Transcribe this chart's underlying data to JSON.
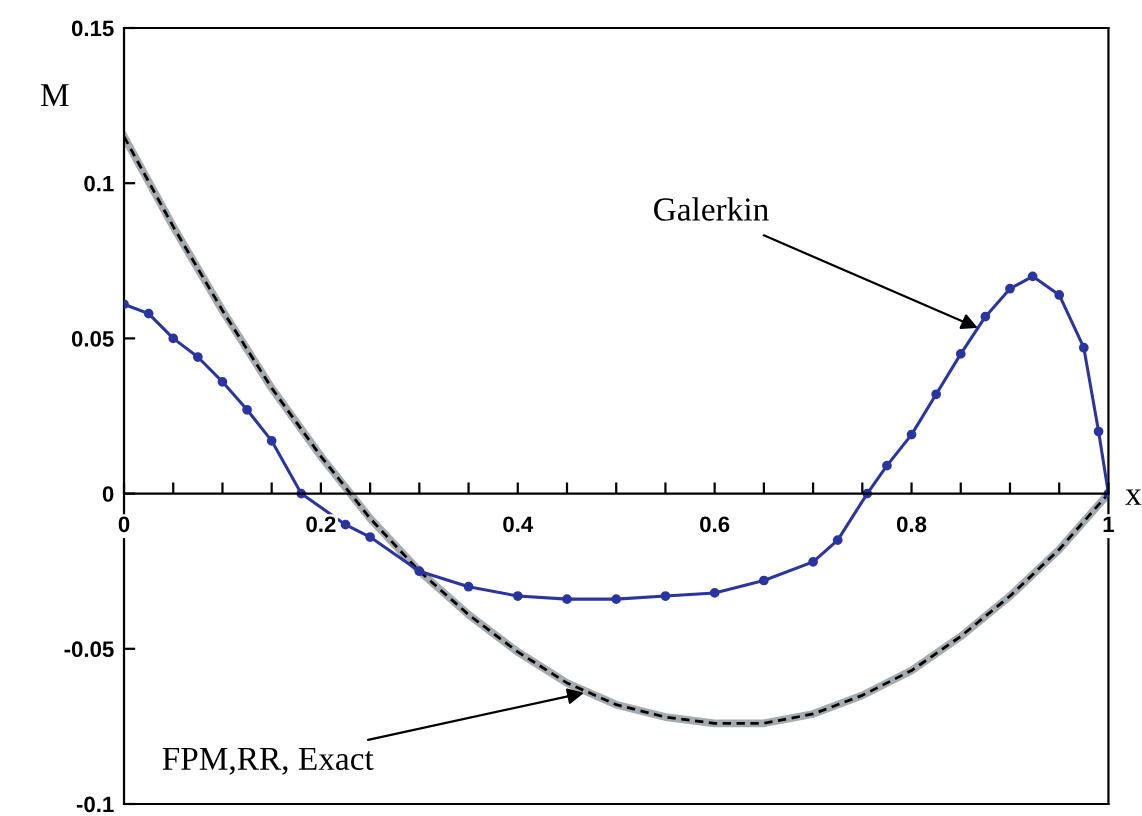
{
  "chart_data": {
    "type": "line",
    "xlabel": "x",
    "ylabel": "M",
    "xlim": [
      0,
      1
    ],
    "ylim": [
      -0.1,
      0.15
    ],
    "xticks": [
      0,
      {
        "value": 0.05,
        "label": null
      },
      {
        "value": 0.1,
        "label": null
      },
      {
        "value": 0.15,
        "label": null
      },
      0.2,
      {
        "value": 0.25,
        "label": null
      },
      {
        "value": 0.3,
        "label": null
      },
      {
        "value": 0.35,
        "label": null
      },
      0.4,
      {
        "value": 0.45,
        "label": null
      },
      {
        "value": 0.5,
        "label": null
      },
      {
        "value": 0.55,
        "label": null
      },
      0.6,
      {
        "value": 0.65,
        "label": null
      },
      {
        "value": 0.7,
        "label": null
      },
      {
        "value": 0.75,
        "label": null
      },
      0.8,
      {
        "value": 0.85,
        "label": null
      },
      {
        "value": 0.9,
        "label": null
      },
      {
        "value": 0.95,
        "label": null
      },
      1
    ],
    "yticks": [
      -0.1,
      -0.05,
      0,
      0.05,
      0.1,
      0.15
    ],
    "grid": false,
    "legend": false,
    "series": [
      {
        "color": "#a6abaf",
        "line_style": "solid",
        "marker": "none",
        "x": [
          0,
          0.05,
          0.1,
          0.15,
          0.2,
          0.25,
          0.3,
          0.35,
          0.4,
          0.45,
          0.5,
          0.55,
          0.6,
          0.65,
          0.7,
          0.75,
          0.8,
          0.85,
          0.9,
          0.95,
          1
        ],
        "values": [
          0.115,
          0.086,
          0.059,
          0.034,
          0.012,
          -0.008,
          -0.025,
          -0.039,
          -0.051,
          -0.061,
          -0.068,
          -0.072,
          -0.074,
          -0.074,
          -0.071,
          -0.065,
          -0.057,
          -0.046,
          -0.033,
          -0.018,
          0
        ]
      },
      {
        "color": "#000000",
        "line_style": "dashed",
        "marker": "none",
        "x": [
          0,
          0.05,
          0.1,
          0.15,
          0.2,
          0.25,
          0.3,
          0.35,
          0.4,
          0.45,
          0.5,
          0.55,
          0.6,
          0.65,
          0.7,
          0.75,
          0.8,
          0.85,
          0.9,
          0.95,
          1
        ],
        "values": [
          0.115,
          0.086,
          0.059,
          0.034,
          0.012,
          -0.008,
          -0.025,
          -0.039,
          -0.051,
          -0.061,
          -0.068,
          -0.072,
          -0.074,
          -0.074,
          -0.071,
          -0.065,
          -0.057,
          -0.046,
          -0.033,
          -0.018,
          0
        ]
      },
      {
        "color": "#2b35a0",
        "line_style": "solid",
        "marker": "circle",
        "x": [
          0,
          0.025,
          0.05,
          0.075,
          0.1,
          0.125,
          0.15,
          0.18,
          0.225,
          0.25,
          0.3,
          0.35,
          0.4,
          0.45,
          0.5,
          0.55,
          0.6,
          0.65,
          0.7,
          0.725,
          0.755,
          0.775,
          0.8,
          0.825,
          0.85,
          0.875,
          0.9,
          0.923,
          0.95,
          0.975,
          0.99,
          1
        ],
        "values": [
          0.061,
          0.058,
          0.05,
          0.044,
          0.036,
          0.027,
          0.017,
          0,
          -0.01,
          -0.014,
          -0.025,
          -0.03,
          -0.033,
          -0.034,
          -0.034,
          -0.033,
          -0.032,
          -0.028,
          -0.022,
          -0.015,
          0,
          0.009,
          0.019,
          0.032,
          0.045,
          0.057,
          0.066,
          0.07,
          0.064,
          0.047,
          0.02,
          0
        ]
      }
    ],
    "annotations": [
      {
        "text": "Galerkin",
        "x": 0.87,
        "y": 0.053
      },
      {
        "text": "FPM,RR, Exact",
        "x": 0.47,
        "y": -0.064
      }
    ]
  }
}
